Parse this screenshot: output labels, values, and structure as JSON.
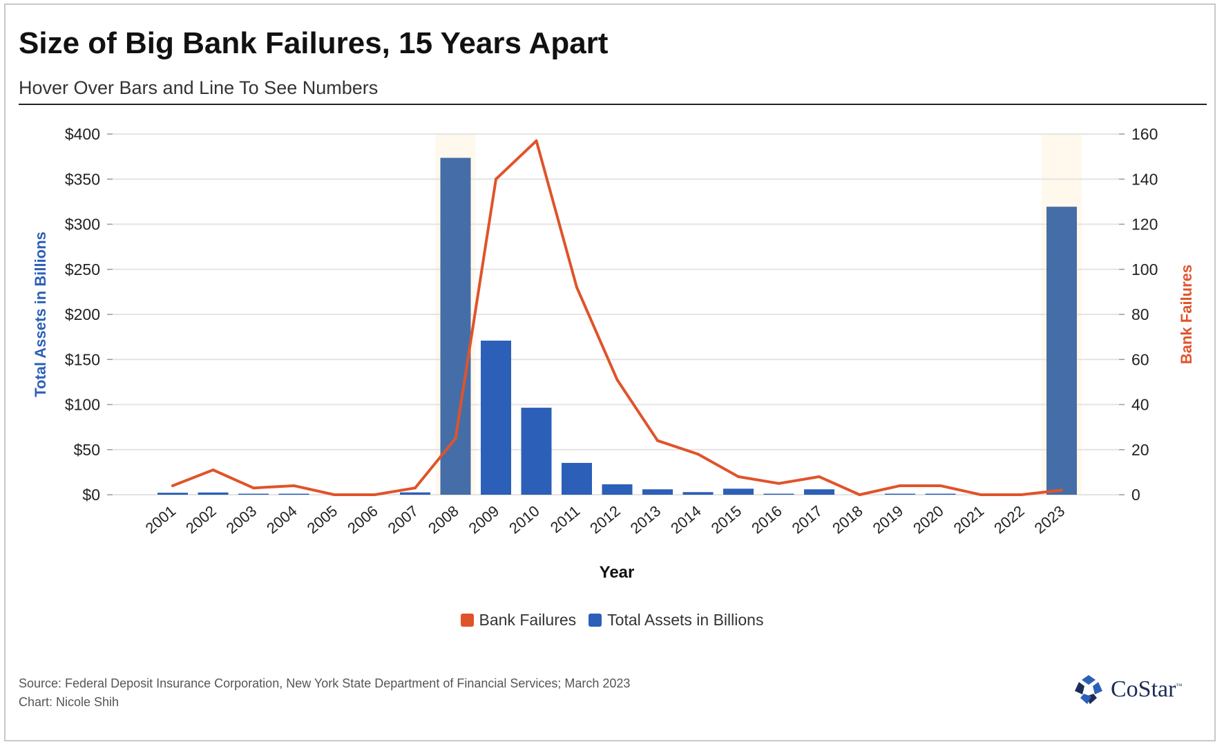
{
  "header": {
    "title": "Size of Big Bank Failures, 15 Years Apart",
    "subtitle": "Hover Over Bars and Line To See Numbers"
  },
  "chart_data": {
    "type": "bar",
    "title": "Size of Big Bank Failures, 15 Years Apart",
    "subtitle": "Hover Over Bars and Line To See Numbers",
    "xlabel": "Year",
    "ylabel": "Total Assets in Billions",
    "y2label": "Bank Failures",
    "categories": [
      "2001",
      "2002",
      "2003",
      "2004",
      "2005",
      "2006",
      "2007",
      "2008",
      "2009",
      "2010",
      "2011",
      "2012",
      "2013",
      "2014",
      "2015",
      "2016",
      "2017",
      "2018",
      "2019",
      "2020",
      "2021",
      "2022",
      "2023"
    ],
    "ylim": [
      0,
      400
    ],
    "y2lim": [
      0,
      160
    ],
    "yticks": [
      "$0",
      "$50",
      "$100",
      "$150",
      "$200",
      "$250",
      "$300",
      "$350",
      "$400"
    ],
    "y2ticks": [
      "0",
      "20",
      "40",
      "60",
      "80",
      "100",
      "120",
      "140",
      "160"
    ],
    "highlighted_categories": [
      "2008",
      "2023"
    ],
    "grid": true,
    "legend_position": "bottom-center",
    "series": [
      {
        "name": "Total Assets in Billions",
        "type": "bar",
        "axis": "left",
        "color": "#2c5fb8",
        "highlight_color": "#456ea8",
        "values": [
          2.2,
          2.5,
          1.1,
          0.2,
          0,
          0,
          2.6,
          373.6,
          170.9,
          96.5,
          35.3,
          11.6,
          6.0,
          2.9,
          6.7,
          0.3,
          6.0,
          0,
          0.2,
          0.5,
          0,
          0,
          319.4
        ]
      },
      {
        "name": "Bank Failures",
        "type": "line",
        "axis": "right",
        "color": "#e0532a",
        "values": [
          4,
          11,
          3,
          4,
          0,
          0,
          3,
          25,
          140,
          157,
          92,
          51,
          24,
          18,
          8,
          5,
          8,
          0,
          4,
          4,
          0,
          0,
          2
        ]
      }
    ]
  },
  "legend": {
    "items": [
      {
        "label": "Bank Failures",
        "color": "#e0532a"
      },
      {
        "label": "Total Assets in Billions",
        "color": "#2c5fb8"
      }
    ]
  },
  "footer": {
    "source": "Source: Federal Deposit Insurance Corporation, New York State Department of Financial Services; March 2023",
    "credit": "Chart: Nicole Shih",
    "logo_text": "CoStar",
    "logo_tm": "™"
  }
}
